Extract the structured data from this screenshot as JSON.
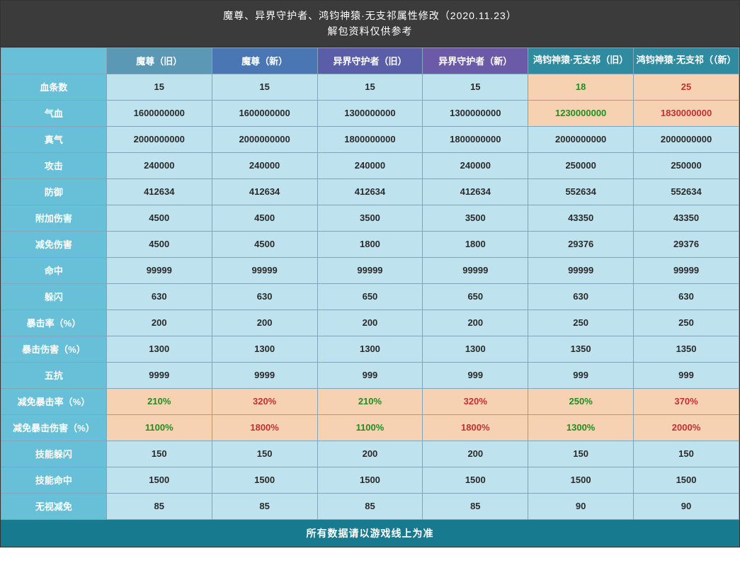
{
  "title_line1": "魔尊、异界守护者、鸿钧神猿·无支祁属性修改（2020.11.23）",
  "title_line2": "解包资料仅供参考",
  "footer": "所有数据请以游戏线上为准",
  "columns": [
    {
      "label": "魔尊（旧）",
      "class": "col-a"
    },
    {
      "label": "魔尊（新）",
      "class": "col-b"
    },
    {
      "label": "异界守护者（旧）",
      "class": "col-c"
    },
    {
      "label": "异界守护者（新）",
      "class": "col-d"
    },
    {
      "label": "鸿钧神猿·无支祁（旧）",
      "class": "col-e"
    },
    {
      "label": "鸿钧神猿·无支祁（（新）",
      "class": "col-f"
    }
  ],
  "rows": [
    {
      "label": "血条数",
      "cells": [
        {
          "v": "15"
        },
        {
          "v": "15"
        },
        {
          "v": "15"
        },
        {
          "v": "15"
        },
        {
          "v": "18",
          "hl": "green"
        },
        {
          "v": "25",
          "hl": "red"
        }
      ]
    },
    {
      "label": "气血",
      "cells": [
        {
          "v": "1600000000"
        },
        {
          "v": "1600000000"
        },
        {
          "v": "1300000000"
        },
        {
          "v": "1300000000"
        },
        {
          "v": "1230000000",
          "hl": "green"
        },
        {
          "v": "1830000000",
          "hl": "red"
        }
      ]
    },
    {
      "label": "真气",
      "cells": [
        {
          "v": "2000000000"
        },
        {
          "v": "2000000000"
        },
        {
          "v": "1800000000"
        },
        {
          "v": "1800000000"
        },
        {
          "v": "2000000000"
        },
        {
          "v": "2000000000"
        }
      ]
    },
    {
      "label": "攻击",
      "cells": [
        {
          "v": "240000"
        },
        {
          "v": "240000"
        },
        {
          "v": "240000"
        },
        {
          "v": "240000"
        },
        {
          "v": "250000"
        },
        {
          "v": "250000"
        }
      ]
    },
    {
      "label": "防御",
      "cells": [
        {
          "v": "412634"
        },
        {
          "v": "412634"
        },
        {
          "v": "412634"
        },
        {
          "v": "412634"
        },
        {
          "v": "552634"
        },
        {
          "v": "552634"
        }
      ]
    },
    {
      "label": "附加伤害",
      "cells": [
        {
          "v": "4500"
        },
        {
          "v": "4500"
        },
        {
          "v": "3500"
        },
        {
          "v": "3500"
        },
        {
          "v": "43350"
        },
        {
          "v": "43350"
        }
      ]
    },
    {
      "label": "减免伤害",
      "cells": [
        {
          "v": "4500"
        },
        {
          "v": "4500"
        },
        {
          "v": "1800"
        },
        {
          "v": "1800"
        },
        {
          "v": "29376"
        },
        {
          "v": "29376"
        }
      ]
    },
    {
      "label": "命中",
      "cells": [
        {
          "v": "99999"
        },
        {
          "v": "99999"
        },
        {
          "v": "99999"
        },
        {
          "v": "99999"
        },
        {
          "v": "99999"
        },
        {
          "v": "99999"
        }
      ]
    },
    {
      "label": "躲闪",
      "cells": [
        {
          "v": "630"
        },
        {
          "v": "630"
        },
        {
          "v": "650"
        },
        {
          "v": "650"
        },
        {
          "v": "630"
        },
        {
          "v": "630"
        }
      ]
    },
    {
      "label": "暴击率（%）",
      "cells": [
        {
          "v": "200"
        },
        {
          "v": "200"
        },
        {
          "v": "200"
        },
        {
          "v": "200"
        },
        {
          "v": "250"
        },
        {
          "v": "250"
        }
      ]
    },
    {
      "label": "暴击伤害（%）",
      "cells": [
        {
          "v": "1300"
        },
        {
          "v": "1300"
        },
        {
          "v": "1300"
        },
        {
          "v": "1300"
        },
        {
          "v": "1350"
        },
        {
          "v": "1350"
        }
      ]
    },
    {
      "label": "五抗",
      "cells": [
        {
          "v": "9999"
        },
        {
          "v": "9999"
        },
        {
          "v": "999"
        },
        {
          "v": "999"
        },
        {
          "v": "999"
        },
        {
          "v": "999"
        }
      ]
    },
    {
      "label": "减免暴击率（%）",
      "cells": [
        {
          "v": "210%",
          "hl": "green"
        },
        {
          "v": "320%",
          "hl": "red"
        },
        {
          "v": "210%",
          "hl": "green"
        },
        {
          "v": "320%",
          "hl": "red"
        },
        {
          "v": "250%",
          "hl": "green"
        },
        {
          "v": "370%",
          "hl": "red"
        }
      ]
    },
    {
      "label": "减免暴击伤害（%）",
      "cells": [
        {
          "v": "1100%",
          "hl": "green"
        },
        {
          "v": "1800%",
          "hl": "red"
        },
        {
          "v": "1100%",
          "hl": "green"
        },
        {
          "v": "1800%",
          "hl": "red"
        },
        {
          "v": "1300%",
          "hl": "green"
        },
        {
          "v": "2000%",
          "hl": "red"
        }
      ]
    },
    {
      "label": "技能躲闪",
      "cells": [
        {
          "v": "150"
        },
        {
          "v": "150"
        },
        {
          "v": "200"
        },
        {
          "v": "200"
        },
        {
          "v": "150"
        },
        {
          "v": "150"
        }
      ]
    },
    {
      "label": "技能命中",
      "cells": [
        {
          "v": "1500"
        },
        {
          "v": "1500"
        },
        {
          "v": "1500"
        },
        {
          "v": "1500"
        },
        {
          "v": "1500"
        },
        {
          "v": "1500"
        }
      ]
    },
    {
      "label": "无视减免",
      "cells": [
        {
          "v": "85"
        },
        {
          "v": "85"
        },
        {
          "v": "85"
        },
        {
          "v": "85"
        },
        {
          "v": "90"
        },
        {
          "v": "90"
        }
      ]
    }
  ],
  "colors": {
    "title_bg": "#3b3b3b",
    "footer_bg": "#177a8f",
    "rowhead_bg": "#67c0d8",
    "cell_bg": "#bfe3ee",
    "highlight_bg": "#f6d2b3",
    "green_text": "#1f8f1f",
    "red_text": "#c23030",
    "border": "#7fa7b7"
  }
}
